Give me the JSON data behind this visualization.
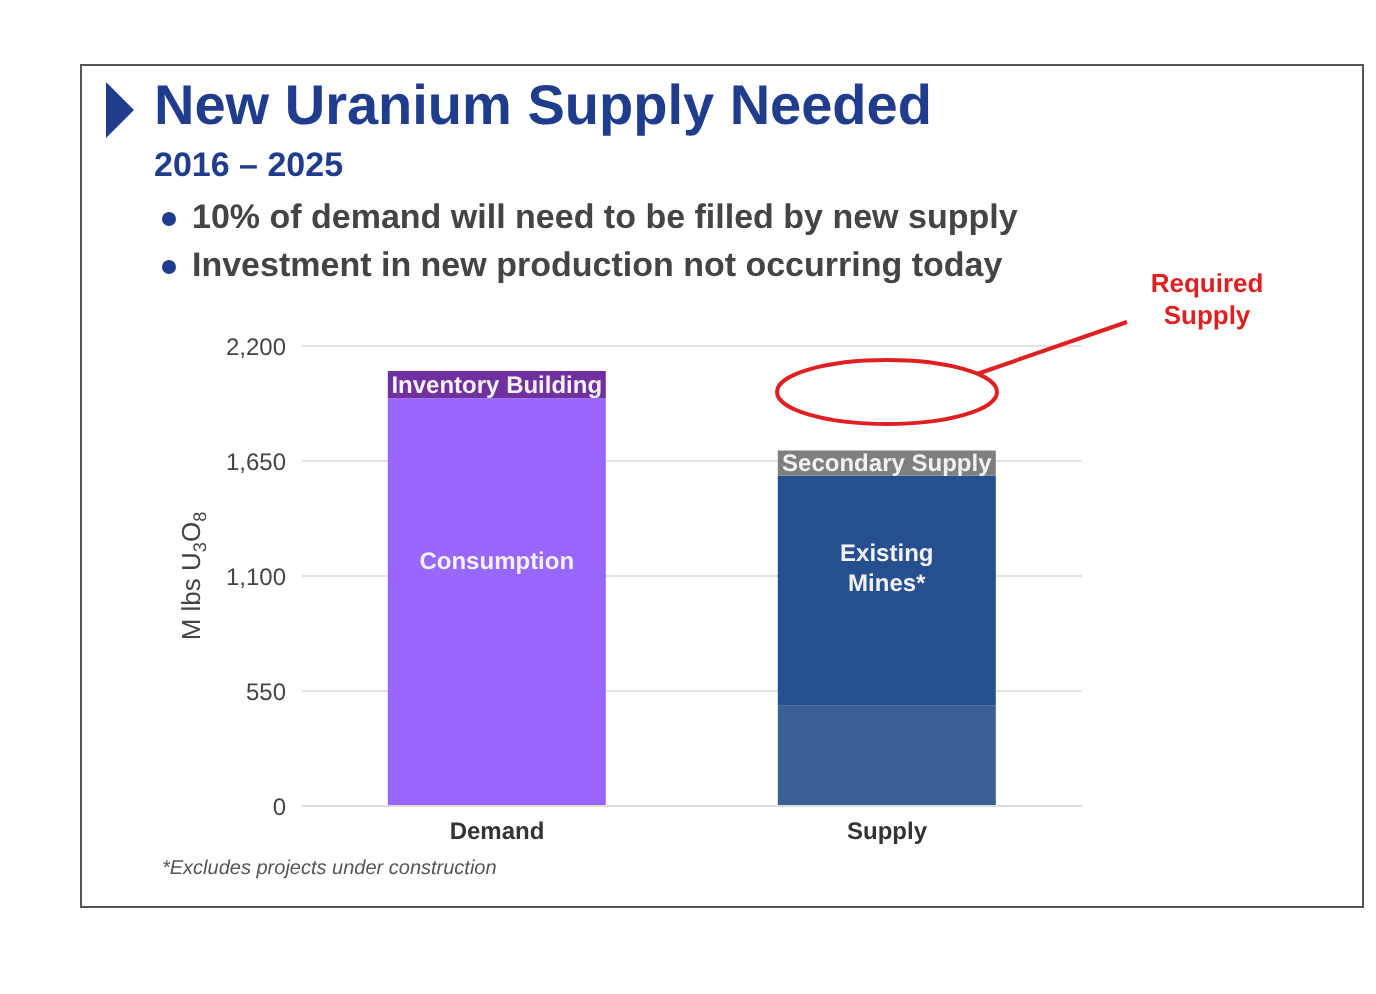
{
  "chart_data": {
    "type": "bar",
    "title": "New Uranium Supply Needed",
    "subtitle": "2016 – 2025",
    "ylabel": "M lbs U$_{3}$O$_{8}$",
    "categories": [
      "Demand",
      "Supply"
    ],
    "stacked": true,
    "ylim": [
      0,
      2200
    ],
    "yticks": [
      0,
      550,
      {
        "value": 1100,
        "label": "1,100"
      },
      {
        "value": 1650,
        "label": "1,650"
      },
      {
        "value": 2200,
        "label": "2,200"
      }
    ],
    "grid": "y",
    "legend": false,
    "series": [
      {
        "name": "Consumption",
        "color": "#9966ff",
        "values": [
          1950,
          null
        ]
      },
      {
        "name": "Inventory Building",
        "color": "#7030a0",
        "values": [
          130,
          null
        ]
      },
      {
        "color": "#3a5f95",
        "values": [
          null,
          480
        ]
      },
      {
        "name": "Existing Mines*",
        "color": "#254f8f",
        "values": [
          null,
          1100
        ]
      },
      {
        "name": "Secondary Supply",
        "color": "#7f7f7f",
        "values": [
          null,
          120
        ]
      }
    ],
    "annotations": [
      "10% of demand will need to be filled by new supply",
      "Investment in new production not occurring today",
      "Required Supply",
      "*Excludes projects under construction"
    ]
  }
}
